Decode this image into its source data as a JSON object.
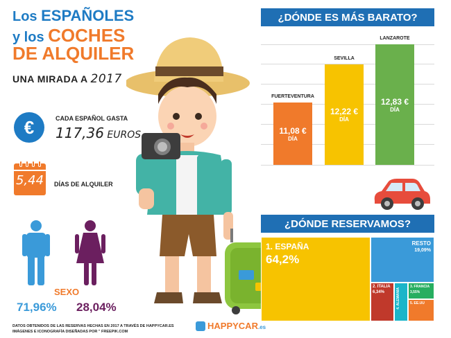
{
  "title": {
    "line1_pre": "Los ",
    "line1_big": "ESPAÑOLES",
    "line2_pre": "y los ",
    "line2_big": "COCHES",
    "line3": "DE ALQUILER"
  },
  "subtitle": {
    "text": "UNA MIRADA A ",
    "year": "2017"
  },
  "spend": {
    "label": "CADA ESPAÑOL GASTA",
    "value": "117,36",
    "unit": " EUROS",
    "icon": "€"
  },
  "days": {
    "value": "5,44",
    "label": "DÍAS DE ALQUILER"
  },
  "gender": {
    "label": "SEXO",
    "male_pct": "71,96%",
    "female_pct": "28,04%",
    "male_color": "#3a9ad9",
    "female_color": "#6b1f5f"
  },
  "footer": {
    "line1": "DATOS OBTENIDOS DE LAS RESERVAS HECHAS EN 2017 A TRAVÉS DE HAPPYCAR.ES",
    "line2": "IMÁGENES E ICONOGRAFÍA DISEÑADAS POR \" FREEPIK.COM"
  },
  "logo": {
    "name": "HAPPYCAR",
    "tld": ".es"
  },
  "charts": {
    "cheap_title": "¿DÓNDE ES MÁS BARATO?",
    "book_title": "¿DÓNDE RESERVAMOS?"
  },
  "chart_data": [
    {
      "type": "bar",
      "title": "¿DÓNDE ES MÁS BARATO?",
      "categories": [
        "FUERTEVENTURA",
        "SEVILLA",
        "LANZAROTE"
      ],
      "values": [
        11.08,
        12.22,
        12.83
      ],
      "value_labels": [
        "11,08 €",
        "12,22 €",
        "12,83 €"
      ],
      "unit_label": "DÍA",
      "colors": [
        "#f07a2b",
        "#f7c300",
        "#6ab04c"
      ],
      "grid": true
    },
    {
      "type": "treemap",
      "title": "¿DÓNDE RESERVAMOS?",
      "items": [
        {
          "label": "1. ESPAÑA",
          "value": 64.2,
          "value_label": "64,2%",
          "color": "#f7c300"
        },
        {
          "label": "RESTO",
          "value": 19.09,
          "value_label": "19,09%",
          "color": "#3a9ad9"
        },
        {
          "label": "2. ITALIA",
          "value": 6.34,
          "value_label": "6,34%",
          "color": "#c0392b"
        },
        {
          "label": "4. ALEMANIA",
          "value": 3.5,
          "value_label": "",
          "color": "#1bb5c9"
        },
        {
          "label": "3. FRANCIA",
          "value": 3.55,
          "value_label": "3,55%",
          "color": "#27ae60"
        },
        {
          "label": "5. EE.UU",
          "value": 3.3,
          "value_label": "",
          "color": "#f07a2b"
        }
      ]
    }
  ]
}
